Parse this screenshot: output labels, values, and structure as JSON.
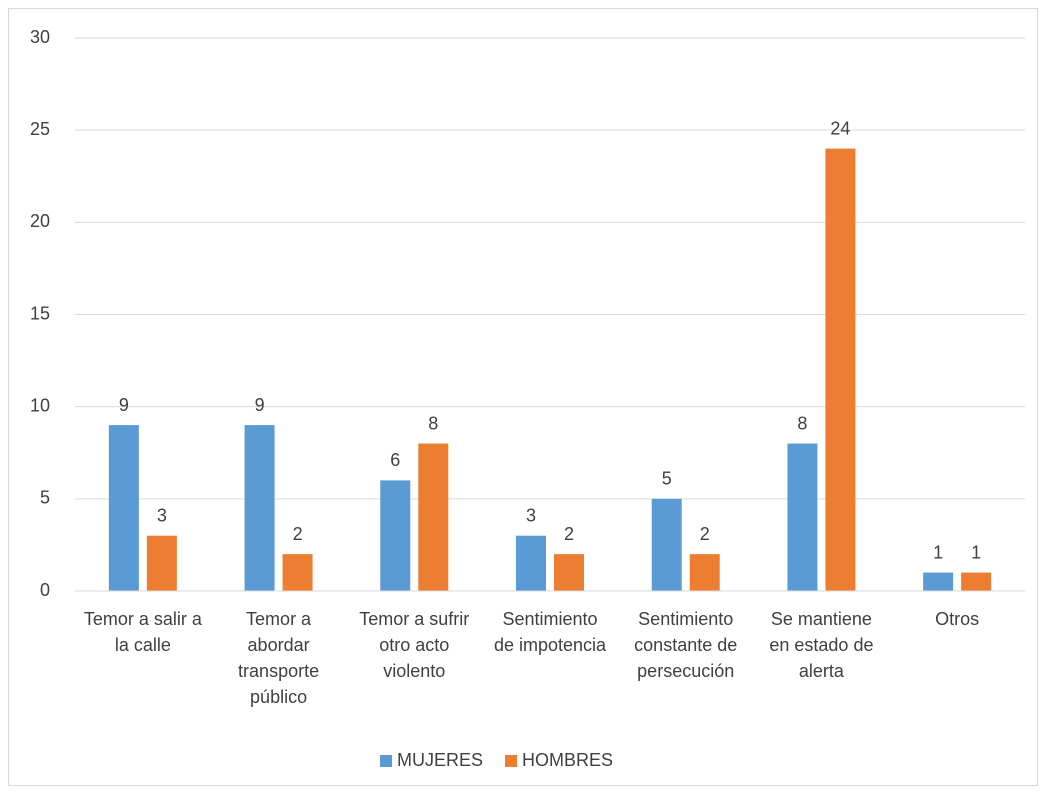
{
  "chart_data": {
    "type": "bar",
    "categories": [
      "Temor a salir a la calle",
      "Temor a abordar transporte público",
      "Temor a sufrir otro acto violento",
      "Sentimiento de impotencia",
      "Sentimiento constante de persecución",
      "Se mantiene en estado de alerta",
      "Otros"
    ],
    "series": [
      {
        "name": "MUJERES",
        "color": "#5b9bd5",
        "values": [
          9,
          9,
          6,
          3,
          5,
          8,
          1
        ]
      },
      {
        "name": "HOMBRES",
        "color": "#ed7d31",
        "values": [
          3,
          2,
          8,
          2,
          2,
          24,
          1
        ]
      }
    ],
    "ylim": [
      0,
      30
    ],
    "yticks": [
      0,
      5,
      10,
      15,
      20,
      25,
      30
    ],
    "grid": true,
    "legend": "bottom"
  }
}
